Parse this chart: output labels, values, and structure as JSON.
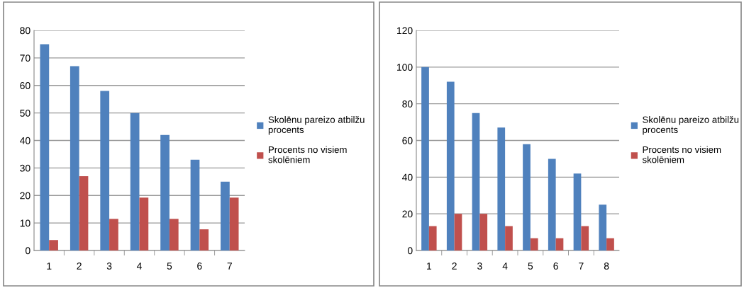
{
  "chart_data": [
    {
      "type": "bar",
      "categories": [
        "1",
        "2",
        "3",
        "4",
        "5",
        "6",
        "7"
      ],
      "ylim": [
        0,
        80
      ],
      "yticks": [
        0,
        10,
        20,
        30,
        40,
        50,
        60,
        70,
        80
      ],
      "grid": "y",
      "legend": "right",
      "series": [
        {
          "name": "Skolēnu pareizo atbilžu procents",
          "color": "#4f81bd",
          "values": [
            75,
            67,
            58,
            50,
            42,
            33,
            25
          ]
        },
        {
          "name": "Procents no visiem skolēniem",
          "color": "#c0504d",
          "values": [
            3.8,
            27,
            11.5,
            19.2,
            11.5,
            7.7,
            19.2
          ]
        }
      ]
    },
    {
      "type": "bar",
      "categories": [
        "1",
        "2",
        "3",
        "4",
        "5",
        "6",
        "7",
        "8"
      ],
      "ylim": [
        0,
        120
      ],
      "yticks": [
        0,
        20,
        40,
        60,
        80,
        100,
        120
      ],
      "grid": "y",
      "legend": "right",
      "series": [
        {
          "name": "Skolēnu pareizo atbilžu procents",
          "color": "#4f81bd",
          "values": [
            100,
            92,
            75,
            67,
            58,
            50,
            42,
            25
          ]
        },
        {
          "name": "Procents no visiem skolēniem",
          "color": "#c0504d",
          "values": [
            13.3,
            20,
            20,
            13.3,
            6.7,
            6.7,
            13.3,
            6.7
          ]
        }
      ]
    }
  ]
}
